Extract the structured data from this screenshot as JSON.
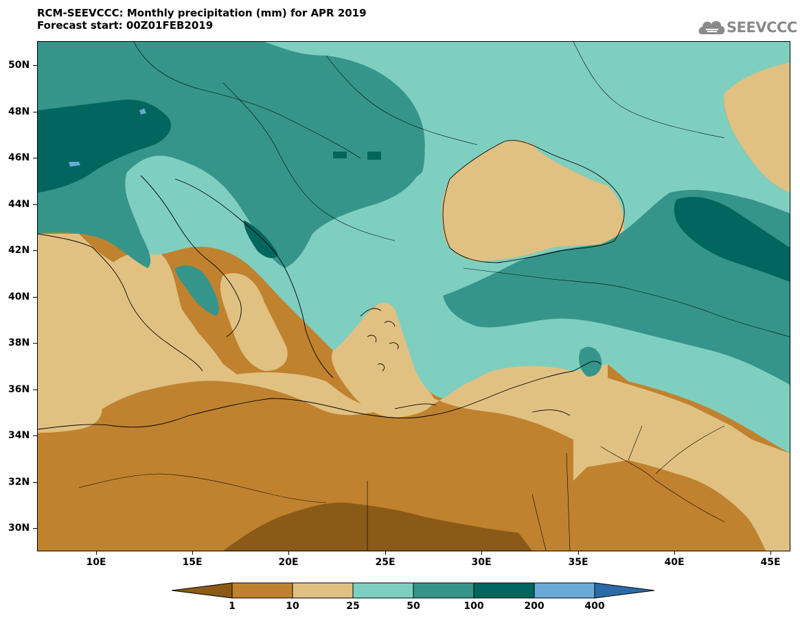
{
  "title": {
    "line1": "RCM-SEEVCCC: Monthly precipitation (mm) for APR 2019",
    "line2": "Forecast start: 00Z01FEB2019"
  },
  "logo": {
    "text": "SEEVCCC",
    "icon": "cloud-logo-icon",
    "color": "#8a8a8a"
  },
  "map": {
    "lon_range": [
      7,
      46
    ],
    "lat_range": [
      29,
      51
    ],
    "y_labels": [
      "50N",
      "48N",
      "46N",
      "44N",
      "42N",
      "40N",
      "38N",
      "36N",
      "34N",
      "32N",
      "30N"
    ],
    "x_labels": [
      "10E",
      "15E",
      "20E",
      "25E",
      "30E",
      "35E",
      "40E",
      "45E"
    ],
    "colors": {
      "lt1": "#8a5a16",
      "1_10": "#c0822f",
      "10_25": "#e0c182",
      "25_50": "#7fcfc0",
      "50_100": "#36958a",
      "100_200": "#01665e",
      "200_400": "#6ba9d6",
      "gt400": "#2b6ca8"
    }
  },
  "colorbar": {
    "labels": [
      "1",
      "10",
      "25",
      "50",
      "100",
      "200",
      "400"
    ],
    "colors": [
      "#8a5a16",
      "#c0822f",
      "#e0c182",
      "#7fcfc0",
      "#36958a",
      "#01665e",
      "#6ba9d6",
      "#2b6ca8"
    ]
  }
}
